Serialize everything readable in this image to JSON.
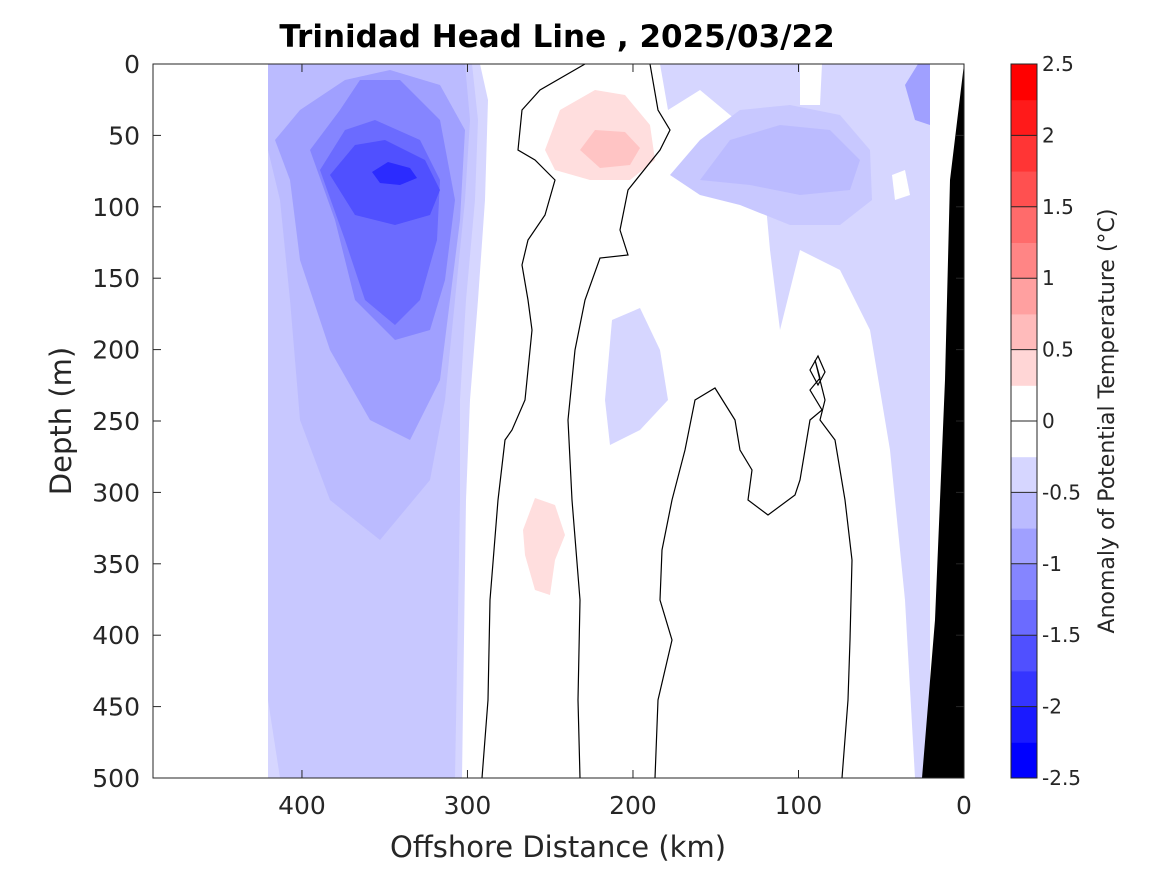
{
  "chart_data": {
    "type": "heatmap",
    "title": "Trinidad Head Line , 2025/03/22",
    "xlabel": "Offshore Distance (km)",
    "ylabel": "Depth (m)",
    "xlim": [
      490,
      0
    ],
    "ylim": [
      0,
      500
    ],
    "x_direction": "reversed",
    "y_direction": "reversed (depth increases downward)",
    "x_ticks": [
      "400",
      "300",
      "200",
      "100",
      "0"
    ],
    "y_ticks": [
      "0",
      "50",
      "100",
      "150",
      "200",
      "250",
      "300",
      "350",
      "400",
      "450",
      "500"
    ],
    "data_extent_km": [
      420,
      0
    ],
    "colorbar": {
      "label": "Anomaly of Potential Temperature (°C)",
      "range": [
        -2.5,
        2.5
      ],
      "step": 0.25,
      "tick_labels": [
        "2.5",
        "2",
        "1.5",
        "1",
        "0.5",
        "0",
        "-0.5",
        "-1",
        "-1.5",
        "-2",
        "-2.5"
      ],
      "colors_low_to_high": [
        "#0000ff",
        "#1a1aff",
        "#3535ff",
        "#5050ff",
        "#6b6bff",
        "#8585ff",
        "#a0a0ff",
        "#bbbbff",
        "#d6d6ff",
        "#ffffff",
        "#ffffff",
        "#ffd6d6",
        "#ffbbbb",
        "#ffa0a0",
        "#ff8585",
        "#ff6b6b",
        "#ff5050",
        "#ff3535",
        "#ff1a1a",
        "#ff0000"
      ]
    },
    "features": [
      {
        "region": "offshore 420-290 km",
        "anomaly": "-0.5 to -1.25 (cold)"
      },
      {
        "region": "core near 350 km, 80 m depth",
        "anomaly": "-2.0"
      },
      {
        "region": "near 210 km, 40-80 m depth",
        "anomaly": "+0.25 to +0.5 (warm)"
      },
      {
        "region": "near 250 km, 300-370 m depth",
        "anomaly": "+0.25 (warm)"
      },
      {
        "region": "100-50 km, 40-120 m depth",
        "anomaly": "-0.5 to -0.75"
      }
    ],
    "land_mask_color": "#000000",
    "contour_level": 0
  }
}
